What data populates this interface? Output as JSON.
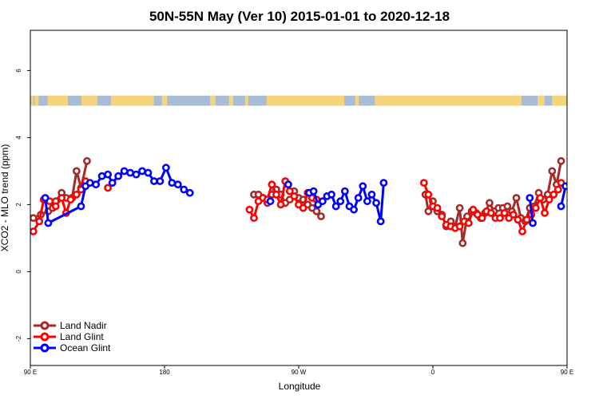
{
  "chart_data": {
    "type": "line",
    "title": "50N-55N May (Ver 10)   2015-01-01 to 2020-12-18",
    "xlabel": "Longitude",
    "ylabel": "XCO2 - MLO trend (ppm)",
    "xlim": [
      90,
      450
    ],
    "ylim": [
      -2.8,
      7.2
    ],
    "x_ticks": [
      {
        "value": 90,
        "label": "90 E"
      },
      {
        "value": 180,
        "label": "180"
      },
      {
        "value": 270,
        "label": "90 W"
      },
      {
        "value": 360,
        "label": "0"
      },
      {
        "value": 450,
        "label": "90 E"
      },
      {
        "value": 540,
        "label": "180"
      }
    ],
    "y_ticks": [
      {
        "value": -2,
        "label": "-2"
      },
      {
        "value": 0,
        "label": "0"
      },
      {
        "value": 2,
        "label": "2"
      },
      {
        "value": 4,
        "label": "4"
      },
      {
        "value": 6,
        "label": "6"
      }
    ],
    "land_ocean_band": {
      "y_bottom": 4.95,
      "y_top": 5.25,
      "land_color": "#f5d57a",
      "ocean_color": "#a8bcd8"
    },
    "legend": {
      "position": "bottom-left"
    },
    "series": [
      {
        "name": "Land Nadir",
        "color": "#a52a2a",
        "segments": [
          [
            [
              92,
              1.6
            ],
            [
              97,
              1.7
            ],
            [
              102,
              1.8
            ],
            [
              105,
              1.9
            ],
            [
              107,
              2.1
            ],
            [
              111,
              2.35
            ],
            [
              114,
              2.2
            ],
            [
              118,
              2.2
            ],
            [
              121,
              3.0
            ],
            [
              124,
              2.5
            ],
            [
              128,
              3.3
            ]
          ],
          [
            [
              240,
              2.3
            ],
            [
              243,
              2.3
            ],
            [
              246,
              2.2
            ],
            [
              249,
              2.05
            ],
            [
              252,
              2.3
            ],
            [
              255,
              2.45
            ],
            [
              258,
              2.3
            ],
            [
              261,
              2.05
            ],
            [
              264,
              2.15
            ],
            [
              267,
              2.4
            ],
            [
              270,
              2.2
            ],
            [
              273,
              2.15
            ],
            [
              276,
              2.0
            ],
            [
              279,
              1.9
            ],
            [
              282,
              1.8
            ],
            [
              285,
              1.65
            ]
          ],
          [
            [
              355,
              2.3
            ],
            [
              357,
              1.8
            ],
            [
              360,
              2.1
            ],
            [
              363,
              1.8
            ],
            [
              366,
              1.7
            ],
            [
              369,
              1.35
            ],
            [
              372,
              1.5
            ],
            [
              375,
              1.35
            ],
            [
              378,
              1.9
            ],
            [
              380,
              0.85
            ],
            [
              383,
              1.65
            ],
            [
              386,
              1.8
            ],
            [
              389,
              1.75
            ],
            [
              392,
              1.6
            ],
            [
              395,
              1.75
            ],
            [
              398,
              2.05
            ],
            [
              401,
              1.8
            ],
            [
              404,
              1.9
            ],
            [
              407,
              1.9
            ],
            [
              410,
              1.95
            ],
            [
              413,
              1.8
            ],
            [
              416,
              2.2
            ],
            [
              419,
              1.6
            ],
            [
              422,
              1.5
            ],
            [
              425,
              1.9
            ],
            [
              428,
              1.95
            ],
            [
              431,
              2.35
            ],
            [
              434,
              2.15
            ],
            [
              437,
              2.3
            ],
            [
              440,
              3.0
            ],
            [
              443,
              2.6
            ],
            [
              446,
              3.3
            ]
          ]
        ]
      },
      {
        "name": "Land Glint",
        "color": "#ff0000",
        "segments": [
          [
            [
              92,
              1.2
            ],
            [
              96,
              1.5
            ],
            [
              99,
              2.15
            ],
            [
              103,
              2.1
            ],
            [
              107,
              1.95
            ],
            [
              111,
              2.2
            ],
            [
              114,
              1.75
            ],
            [
              117,
              2.15
            ],
            [
              121,
              2.3
            ],
            [
              124,
              2.45
            ],
            [
              127,
              2.7
            ]
          ],
          [
            [
              142,
              2.5
            ]
          ],
          [
            [
              237,
              1.85
            ],
            [
              240,
              1.6
            ],
            [
              243,
              2.1
            ],
            [
              246,
              2.2
            ],
            [
              249,
              2.15
            ],
            [
              252,
              2.6
            ],
            [
              255,
              2.3
            ],
            [
              258,
              2.0
            ],
            [
              261,
              2.7
            ],
            [
              264,
              2.4
            ],
            [
              267,
              2.25
            ],
            [
              270,
              2.0
            ],
            [
              273,
              1.9
            ],
            [
              276,
              2.35
            ],
            [
              279,
              2.2
            ],
            [
              282,
              2.15
            ]
          ],
          [
            [
              354,
              2.65
            ],
            [
              357,
              2.3
            ],
            [
              360,
              1.95
            ],
            [
              363,
              1.9
            ],
            [
              366,
              1.65
            ],
            [
              369,
              1.4
            ],
            [
              372,
              1.35
            ],
            [
              375,
              1.3
            ],
            [
              378,
              1.35
            ],
            [
              381,
              1.5
            ],
            [
              384,
              1.45
            ],
            [
              387,
              1.85
            ],
            [
              390,
              1.7
            ],
            [
              393,
              1.6
            ],
            [
              396,
              1.8
            ],
            [
              399,
              1.75
            ],
            [
              402,
              1.6
            ],
            [
              405,
              1.6
            ],
            [
              408,
              1.75
            ],
            [
              411,
              1.6
            ],
            [
              414,
              1.7
            ],
            [
              417,
              1.55
            ],
            [
              420,
              1.2
            ],
            [
              423,
              1.55
            ],
            [
              426,
              1.7
            ],
            [
              429,
              1.9
            ],
            [
              432,
              2.2
            ],
            [
              435,
              1.75
            ],
            [
              438,
              2.15
            ],
            [
              441,
              2.3
            ],
            [
              444,
              2.45
            ],
            [
              446,
              2.65
            ]
          ],
          [
            [
              454,
              2.5
            ]
          ]
        ]
      },
      {
        "name": "Ocean Glint",
        "color": "#0000ff",
        "segments": [
          [
            [
              100,
              2.2
            ],
            [
              102,
              1.45
            ],
            [
              124,
              1.95
            ],
            [
              127,
              2.55
            ],
            [
              130,
              2.65
            ],
            [
              134,
              2.6
            ],
            [
              138,
              2.85
            ],
            [
              142,
              2.9
            ],
            [
              145,
              2.65
            ],
            [
              149,
              2.85
            ],
            [
              153,
              3.0
            ],
            [
              157,
              2.95
            ],
            [
              161,
              2.9
            ],
            [
              165,
              3.0
            ],
            [
              169,
              2.95
            ],
            [
              173,
              2.7
            ],
            [
              177,
              2.7
            ],
            [
              181,
              3.1
            ],
            [
              185,
              2.65
            ],
            [
              189,
              2.6
            ],
            [
              193,
              2.45
            ],
            [
              197,
              2.35
            ]
          ],
          [
            [
              251,
              2.1
            ]
          ],
          [
            [
              263,
              2.6
            ]
          ],
          [
            [
              277,
              2.35
            ],
            [
              280,
              2.4
            ],
            [
              283,
              2.0
            ],
            [
              286,
              2.1
            ],
            [
              289,
              2.25
            ],
            [
              292,
              2.3
            ],
            [
              295,
              1.95
            ],
            [
              298,
              2.1
            ],
            [
              301,
              2.4
            ],
            [
              304,
              1.95
            ],
            [
              307,
              1.85
            ],
            [
              310,
              2.2
            ],
            [
              313,
              2.55
            ],
            [
              316,
              2.1
            ],
            [
              319,
              2.3
            ],
            [
              322,
              2.05
            ],
            [
              325,
              1.5
            ],
            [
              327,
              2.65
            ]
          ],
          [
            [
              425,
              2.2
            ],
            [
              427,
              1.45
            ]
          ],
          [
            [
              446,
              1.95
            ],
            [
              449,
              2.55
            ],
            [
              452,
              2.6
            ],
            [
              456,
              2.6
            ],
            [
              460,
              2.85
            ],
            [
              464,
              2.9
            ],
            [
              468,
              2.65
            ],
            [
              472,
              2.85
            ],
            [
              476,
              3.0
            ]
          ]
        ]
      }
    ]
  }
}
